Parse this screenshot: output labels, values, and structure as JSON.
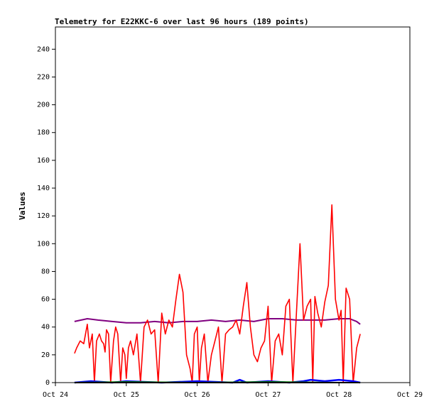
{
  "chart_data": {
    "type": "line",
    "title": "Telemetry for E22KKC-6 over last 96 hours (189 points)",
    "xlabel": "",
    "ylabel": "Values",
    "x_ticks": [
      "Oct 24",
      "Oct 25",
      "Oct 26",
      "Oct 27",
      "Oct 28",
      "Oct 29"
    ],
    "xlim": [
      "Oct 24",
      "Oct 29"
    ],
    "y_ticks": [
      0,
      20,
      40,
      60,
      80,
      100,
      120,
      140,
      160,
      180,
      200,
      220,
      240
    ],
    "ylim": [
      0,
      256
    ],
    "grid": false,
    "legend": "none",
    "series": [
      {
        "color": "#800080",
        "x": [
          0.27,
          0.45,
          0.6,
          0.8,
          1.0,
          1.2,
          1.4,
          1.6,
          1.8,
          2.0,
          2.2,
          2.4,
          2.6,
          2.8,
          3.0,
          3.2,
          3.4,
          3.6,
          3.8,
          4.0,
          4.15,
          4.25,
          4.3
        ],
        "y": [
          44,
          46,
          45,
          44,
          43,
          43,
          44,
          43,
          44,
          44,
          45,
          44,
          45,
          44,
          46,
          46,
          45,
          45,
          45,
          46,
          46,
          44,
          42
        ]
      },
      {
        "color": "#ff0000",
        "x": [
          0.27,
          0.3,
          0.35,
          0.4,
          0.45,
          0.48,
          0.52,
          0.55,
          0.58,
          0.62,
          0.65,
          0.68,
          0.7,
          0.72,
          0.75,
          0.78,
          0.82,
          0.85,
          0.88,
          0.92,
          0.95,
          0.98,
          1.0,
          1.03,
          1.06,
          1.1,
          1.15,
          1.2,
          1.25,
          1.3,
          1.35,
          1.4,
          1.45,
          1.5,
          1.55,
          1.6,
          1.65,
          1.7,
          1.75,
          1.8,
          1.85,
          1.9,
          1.93,
          1.96,
          2.0,
          2.03,
          2.06,
          2.1,
          2.15,
          2.2,
          2.25,
          2.3,
          2.35,
          2.4,
          2.45,
          2.5,
          2.55,
          2.6,
          2.65,
          2.7,
          2.75,
          2.8,
          2.85,
          2.9,
          2.95,
          3.0,
          3.05,
          3.1,
          3.15,
          3.2,
          3.25,
          3.3,
          3.35,
          3.4,
          3.45,
          3.5,
          3.55,
          3.6,
          3.63,
          3.66,
          3.7,
          3.75,
          3.8,
          3.85,
          3.9,
          3.95,
          4.0,
          4.03,
          4.06,
          4.1,
          4.15,
          4.2,
          4.25,
          4.3
        ],
        "y": [
          21,
          25,
          30,
          28,
          42,
          25,
          35,
          0,
          30,
          35,
          30,
          28,
          22,
          38,
          35,
          0,
          30,
          40,
          35,
          0,
          25,
          20,
          3,
          25,
          30,
          20,
          35,
          0,
          40,
          45,
          35,
          38,
          0,
          50,
          35,
          45,
          40,
          60,
          78,
          65,
          20,
          10,
          0,
          35,
          40,
          0,
          25,
          35,
          0,
          20,
          30,
          40,
          0,
          35,
          38,
          40,
          45,
          35,
          55,
          72,
          40,
          20,
          15,
          25,
          30,
          55,
          0,
          30,
          35,
          20,
          55,
          60,
          0,
          50,
          100,
          45,
          55,
          60,
          0,
          62,
          50,
          40,
          58,
          70,
          128,
          60,
          45,
          52,
          0,
          68,
          60,
          0,
          25,
          35
        ]
      },
      {
        "color": "#0000ff",
        "x": [
          0.27,
          0.5,
          0.8,
          1.0,
          1.5,
          2.0,
          2.5,
          2.6,
          2.7,
          3.0,
          3.3,
          3.5,
          3.6,
          3.8,
          4.0,
          4.2,
          4.3
        ],
        "y": [
          0,
          1,
          0,
          1,
          0,
          1,
          0,
          2,
          0,
          1,
          0,
          1,
          2,
          1,
          2,
          1,
          0
        ]
      },
      {
        "color": "#008000",
        "x": [
          0.27,
          1.0,
          2.0,
          3.0,
          4.0,
          4.3
        ],
        "y": [
          0,
          0.5,
          0,
          0.5,
          0,
          0
        ]
      },
      {
        "color": "#000000",
        "x": [
          0.27,
          4.3
        ],
        "y": [
          0,
          0
        ]
      }
    ]
  }
}
